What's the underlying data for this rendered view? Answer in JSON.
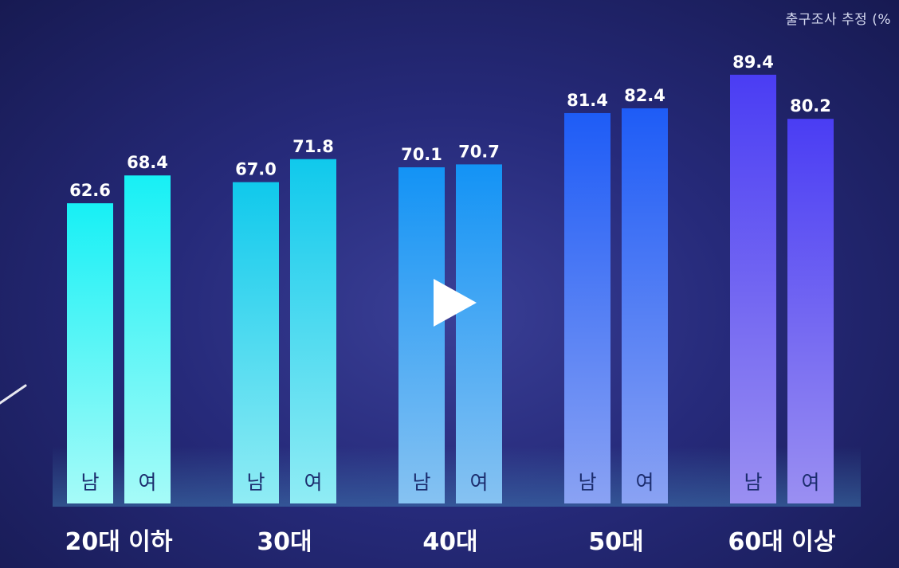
{
  "unit_label": "출구조사 추정 (%",
  "chart_data": {
    "type": "bar",
    "title": "",
    "xlabel": "",
    "ylabel": "",
    "ylim": [
      0,
      100
    ],
    "grid": false,
    "legend": "none",
    "categories": [
      "20대 이하",
      "30대",
      "40대",
      "50대",
      "60대 이상"
    ],
    "series": [
      {
        "name": "남",
        "values": [
          62.6,
          67.0,
          70.1,
          81.4,
          89.4
        ],
        "value_labels": [
          "62.6",
          "67.0",
          "70.1",
          "81.4",
          "89.4"
        ]
      },
      {
        "name": "여",
        "values": [
          68.4,
          71.8,
          70.7,
          82.4,
          80.2
        ],
        "value_labels": [
          "68.4",
          "71.8",
          "70.7",
          "82.4",
          "80.2"
        ]
      }
    ],
    "bar_colors": [
      {
        "top": "#17f0f5",
        "bottom": "#a6fbf8"
      },
      {
        "top": "#10c9ec",
        "bottom": "#90ecf4"
      },
      {
        "top": "#1393f5",
        "bottom": "#86c2f2"
      },
      {
        "top": "#1e5cf6",
        "bottom": "#8aa2f3"
      },
      {
        "top": "#4a3df3",
        "bottom": "#9a8ff2"
      }
    ]
  },
  "controls": {
    "play_icon": "play-icon"
  }
}
